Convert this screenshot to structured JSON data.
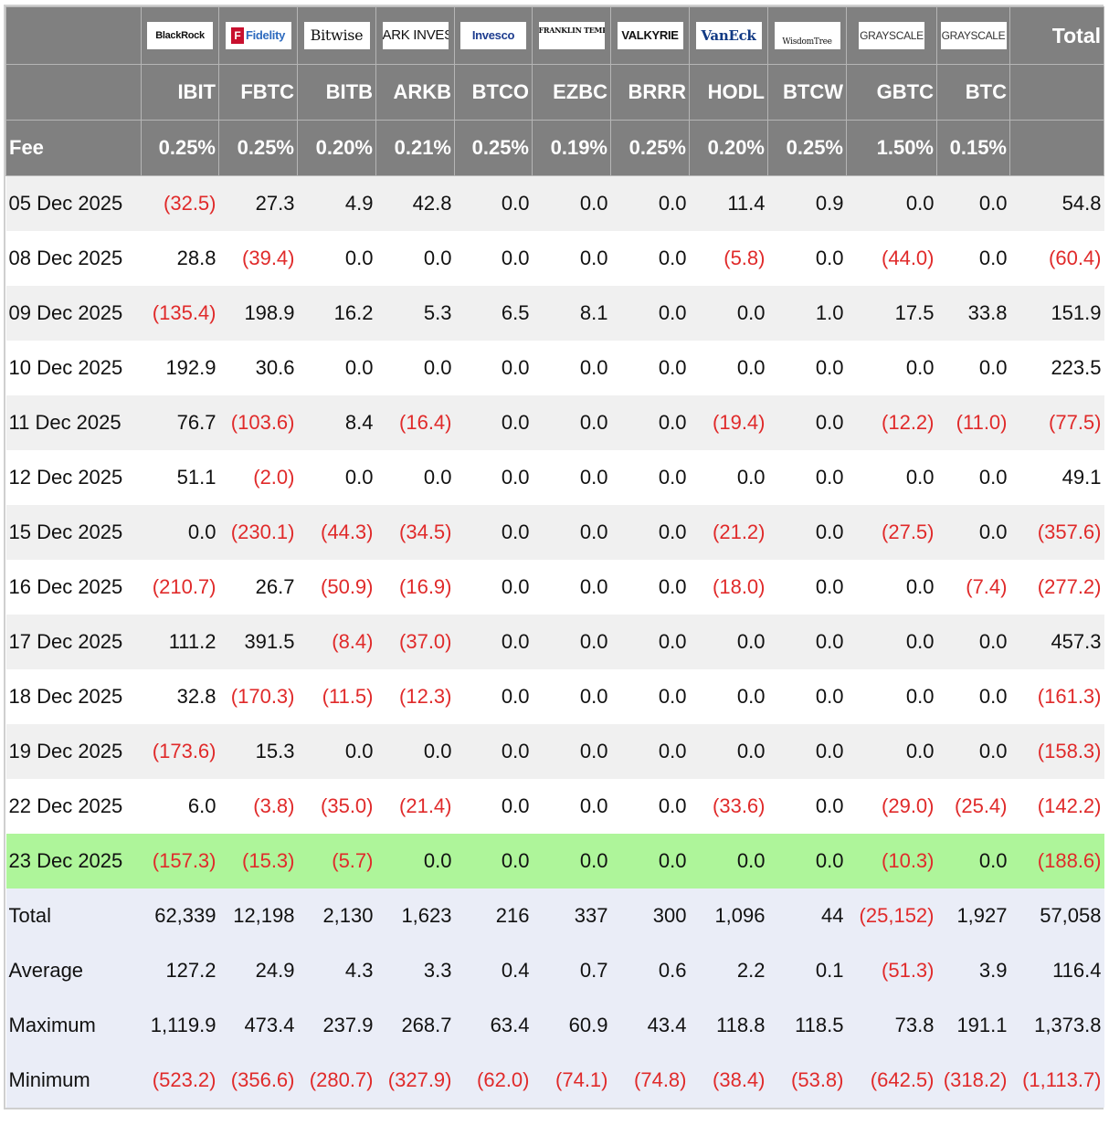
{
  "issuers": [
    {
      "logo": "BlackRock",
      "ticker": "IBIT",
      "fee": "0.25%"
    },
    {
      "logo": "Fidelity",
      "ticker": "FBTC",
      "fee": "0.25%"
    },
    {
      "logo": "Bitwise",
      "ticker": "BITB",
      "fee": "0.20%"
    },
    {
      "logo": "ARK INVEST",
      "ticker": "ARKB",
      "fee": "0.21%"
    },
    {
      "logo": "Invesco",
      "ticker": "BTCO",
      "fee": "0.25%"
    },
    {
      "logo": "FRANKLIN TEMPLETON",
      "ticker": "EZBC",
      "fee": "0.19%"
    },
    {
      "logo": "VALKYRIE",
      "ticker": "BRRR",
      "fee": "0.25%"
    },
    {
      "logo": "VanEck",
      "ticker": "HODL",
      "fee": "0.20%"
    },
    {
      "logo": "WisdomTree",
      "ticker": "BTCW",
      "fee": "0.25%"
    },
    {
      "logo": "GRAYSCALE",
      "ticker": "GBTC",
      "fee": "1.50%"
    },
    {
      "logo": "GRAYSCALE",
      "ticker": "BTC",
      "fee": "0.15%"
    }
  ],
  "header": {
    "total_label": "Total",
    "fee_label": "Fee"
  },
  "rows": [
    {
      "date": "05 Dec 2025",
      "values": [
        "(32.5)",
        "27.3",
        "4.9",
        "42.8",
        "0.0",
        "0.0",
        "0.0",
        "11.4",
        "0.9",
        "0.0",
        "0.0"
      ],
      "total": "54.8"
    },
    {
      "date": "08 Dec 2025",
      "values": [
        "28.8",
        "(39.4)",
        "0.0",
        "0.0",
        "0.0",
        "0.0",
        "0.0",
        "(5.8)",
        "0.0",
        "(44.0)",
        "0.0"
      ],
      "total": "(60.4)"
    },
    {
      "date": "09 Dec 2025",
      "values": [
        "(135.4)",
        "198.9",
        "16.2",
        "5.3",
        "6.5",
        "8.1",
        "0.0",
        "0.0",
        "1.0",
        "17.5",
        "33.8"
      ],
      "total": "151.9"
    },
    {
      "date": "10 Dec 2025",
      "values": [
        "192.9",
        "30.6",
        "0.0",
        "0.0",
        "0.0",
        "0.0",
        "0.0",
        "0.0",
        "0.0",
        "0.0",
        "0.0"
      ],
      "total": "223.5"
    },
    {
      "date": "11 Dec 2025",
      "values": [
        "76.7",
        "(103.6)",
        "8.4",
        "(16.4)",
        "0.0",
        "0.0",
        "0.0",
        "(19.4)",
        "0.0",
        "(12.2)",
        "(11.0)"
      ],
      "total": "(77.5)"
    },
    {
      "date": "12 Dec 2025",
      "values": [
        "51.1",
        "(2.0)",
        "0.0",
        "0.0",
        "0.0",
        "0.0",
        "0.0",
        "0.0",
        "0.0",
        "0.0",
        "0.0"
      ],
      "total": "49.1"
    },
    {
      "date": "15 Dec 2025",
      "values": [
        "0.0",
        "(230.1)",
        "(44.3)",
        "(34.5)",
        "0.0",
        "0.0",
        "0.0",
        "(21.2)",
        "0.0",
        "(27.5)",
        "0.0"
      ],
      "total": "(357.6)"
    },
    {
      "date": "16 Dec 2025",
      "values": [
        "(210.7)",
        "26.7",
        "(50.9)",
        "(16.9)",
        "0.0",
        "0.0",
        "0.0",
        "(18.0)",
        "0.0",
        "0.0",
        "(7.4)"
      ],
      "total": "(277.2)"
    },
    {
      "date": "17 Dec 2025",
      "values": [
        "111.2",
        "391.5",
        "(8.4)",
        "(37.0)",
        "0.0",
        "0.0",
        "0.0",
        "0.0",
        "0.0",
        "0.0",
        "0.0"
      ],
      "total": "457.3"
    },
    {
      "date": "18 Dec 2025",
      "values": [
        "32.8",
        "(170.3)",
        "(11.5)",
        "(12.3)",
        "0.0",
        "0.0",
        "0.0",
        "0.0",
        "0.0",
        "0.0",
        "0.0"
      ],
      "total": "(161.3)"
    },
    {
      "date": "19 Dec 2025",
      "values": [
        "(173.6)",
        "15.3",
        "0.0",
        "0.0",
        "0.0",
        "0.0",
        "0.0",
        "0.0",
        "0.0",
        "0.0",
        "0.0"
      ],
      "total": "(158.3)"
    },
    {
      "date": "22 Dec 2025",
      "values": [
        "6.0",
        "(3.8)",
        "(35.0)",
        "(21.4)",
        "0.0",
        "0.0",
        "0.0",
        "(33.6)",
        "0.0",
        "(29.0)",
        "(25.4)"
      ],
      "total": "(142.2)"
    },
    {
      "date": "23 Dec 2025",
      "values": [
        "(157.3)",
        "(15.3)",
        "(5.7)",
        "0.0",
        "0.0",
        "0.0",
        "0.0",
        "0.0",
        "0.0",
        "(10.3)",
        "0.0"
      ],
      "total": "(188.6)",
      "highlight": true
    }
  ],
  "summary": [
    {
      "label": "Total",
      "values": [
        "62,339",
        "12,198",
        "2,130",
        "1,623",
        "216",
        "337",
        "300",
        "1,096",
        "44",
        "(25,152)",
        "1,927"
      ],
      "total": "57,058"
    },
    {
      "label": "Average",
      "values": [
        "127.2",
        "24.9",
        "4.3",
        "3.3",
        "0.4",
        "0.7",
        "0.6",
        "2.2",
        "0.1",
        "(51.3)",
        "3.9"
      ],
      "total": "116.4"
    },
    {
      "label": "Maximum",
      "values": [
        "1,119.9",
        "473.4",
        "237.9",
        "268.7",
        "63.4",
        "60.9",
        "43.4",
        "118.8",
        "118.5",
        "73.8",
        "191.1"
      ],
      "total": "1,373.8"
    },
    {
      "label": "Minimum",
      "values": [
        "(523.2)",
        "(356.6)",
        "(280.7)",
        "(327.9)",
        "(62.0)",
        "(74.1)",
        "(74.8)",
        "(38.4)",
        "(53.8)",
        "(642.5)",
        "(318.2)"
      ],
      "total": "(1,113.7)"
    }
  ],
  "colors": {
    "header_bg": "#808080",
    "row_alt_bg": "#f0f0f0",
    "highlight_bg": "#aef59a",
    "summary_bg": "#eaedf7",
    "negative": "#e02a2a"
  }
}
